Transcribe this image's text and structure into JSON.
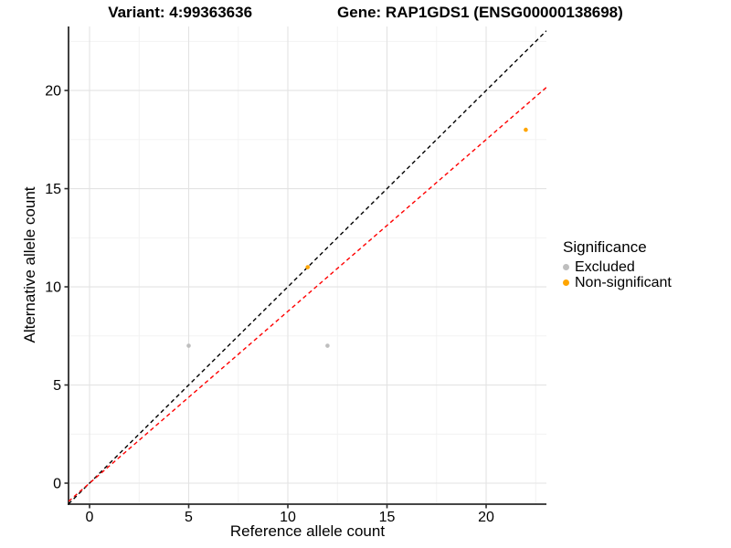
{
  "chart_data": {
    "type": "scatter",
    "title_left": "Variant: 4:99363636",
    "title_right": "Gene: RAP1GDS1 (ENSG00000138698)",
    "xlabel": "Reference allele count",
    "ylabel": "Alternative allele count",
    "xlim": [
      -1.06,
      23.04
    ],
    "ylim": [
      -1.07,
      23.26
    ],
    "xticks": [
      0,
      5,
      10,
      15,
      20
    ],
    "yticks": [
      0,
      5,
      10,
      15,
      20
    ],
    "xticks_minor": [
      2.5,
      7.5,
      12.5,
      17.5,
      22.5
    ],
    "yticks_minor": [
      2.5,
      7.5,
      12.5,
      17.5,
      22.5
    ],
    "grid": true,
    "legend_position": "right",
    "series": [
      {
        "name": "Excluded",
        "color": "#BEBEBE",
        "marker": "circle",
        "points": [
          [
            5,
            7
          ],
          [
            12,
            7
          ]
        ]
      },
      {
        "name": "Non-significant",
        "color": "#FFA500",
        "marker": "circle",
        "points": [
          [
            11,
            11
          ],
          [
            22,
            18
          ]
        ]
      }
    ],
    "lines": [
      {
        "name": "identity-line",
        "slope": 1,
        "intercept": 0,
        "color": "#000000",
        "style": "dashed"
      },
      {
        "name": "expected-ratio-line",
        "slope": 0.875,
        "intercept": 0,
        "color": "#FF0000",
        "style": "dashed"
      }
    ],
    "legend": {
      "title": "Significance",
      "entries": [
        {
          "label": "Excluded",
          "color": "#BEBEBE"
        },
        {
          "label": "Non-significant",
          "color": "#FFA500"
        }
      ]
    },
    "colors": {
      "grid_major": "#E3E3E3",
      "grid_minor": "#F1F1F1",
      "axis": "#2B2B2B",
      "text": "#000000"
    }
  }
}
